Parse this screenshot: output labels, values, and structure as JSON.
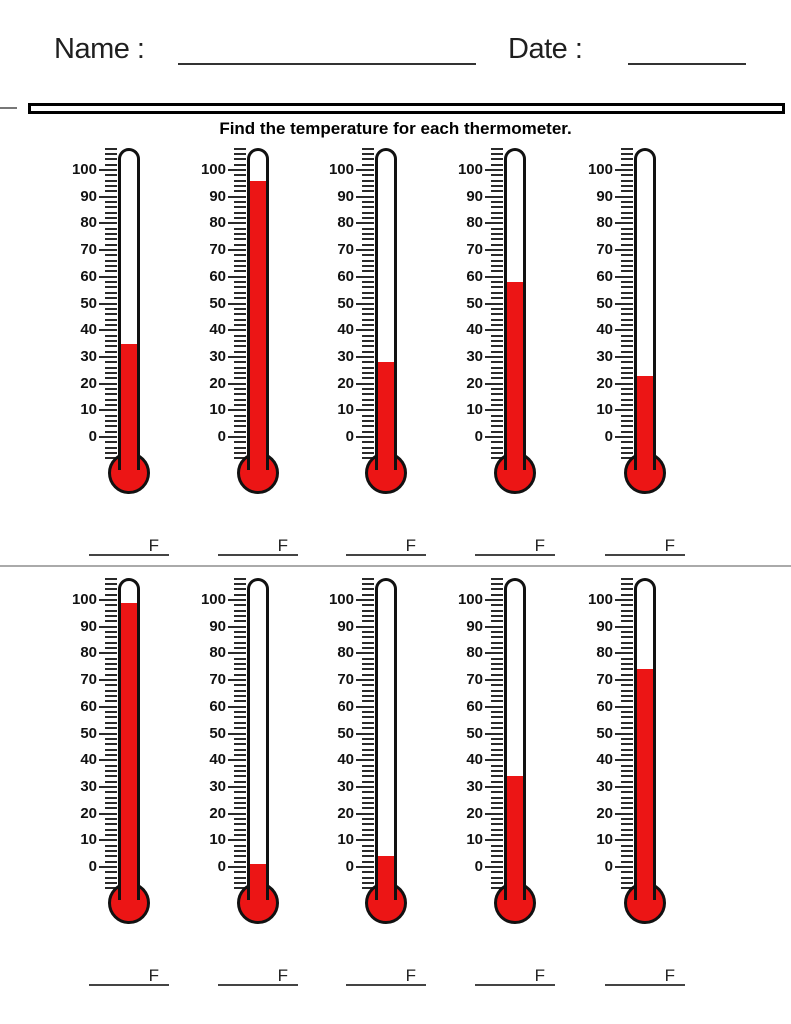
{
  "header": {
    "name_label": "Name :",
    "date_label": "Date :"
  },
  "title": "Find the temperature for each thermometer.",
  "unit_label": "F",
  "scale": {
    "min": 0,
    "max": 100,
    "major_step": 10,
    "minor_step": 2,
    "labels": [
      "100",
      "90",
      "80",
      "70",
      "60",
      "50",
      "40",
      "30",
      "20",
      "10",
      "0"
    ]
  },
  "thermometer_values": {
    "row1": [
      35,
      96,
      28,
      58,
      23
    ],
    "row2": [
      99,
      1,
      4,
      34,
      74
    ]
  },
  "colors": {
    "mercury": "#ec1515",
    "outline": "#111111",
    "tick": "#2a2a2a",
    "divider": "#aaaaaa"
  }
}
